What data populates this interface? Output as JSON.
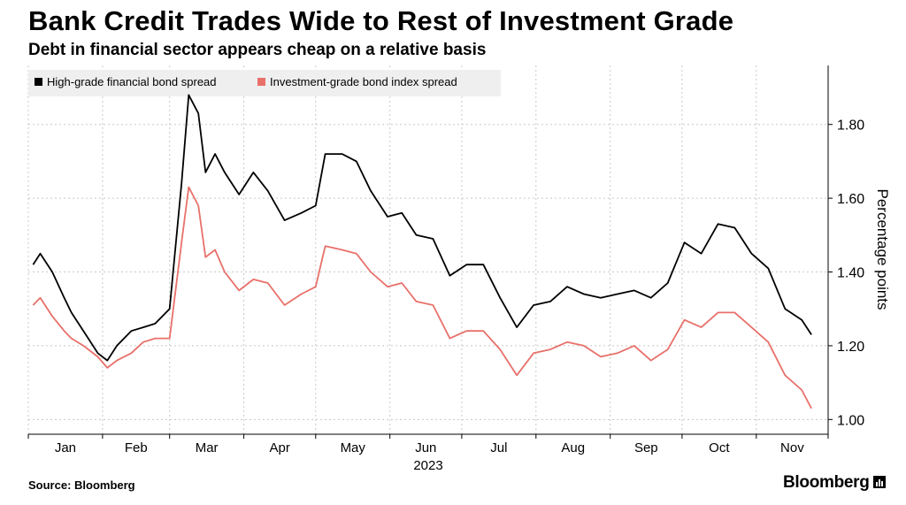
{
  "header": {
    "title": "Bank Credit Trades Wide to Rest of Investment Grade",
    "subtitle": "Debt in financial sector appears cheap on a relative basis"
  },
  "footer": {
    "source": "Source: Bloomberg",
    "brand": "Bloomberg"
  },
  "colors": {
    "financial": "#000000",
    "index": "#e8706a",
    "grid": "#c8c8c8",
    "legend_bg": "#efefef"
  },
  "chart_data": {
    "type": "line",
    "ylabel": "Percentage points",
    "xlabel": "",
    "year_label": "2023",
    "ylim": [
      0.96,
      1.96
    ],
    "yticks": [
      "1.00",
      "1.20",
      "1.40",
      "1.60",
      "1.80"
    ],
    "ytick_values": [
      1.0,
      1.2,
      1.4,
      1.6,
      1.8
    ],
    "month_labels": [
      "Jan",
      "Feb",
      "Mar",
      "Apr",
      "May",
      "Jun",
      "Jul",
      "Aug",
      "Sep",
      "Oct",
      "Nov"
    ],
    "grid": true,
    "legend_position": "top-left",
    "x": [
      "2023-01-03",
      "2023-01-06",
      "2023-01-11",
      "2023-01-16",
      "2023-01-19",
      "2023-01-24",
      "2023-01-30",
      "2023-02-03",
      "2023-02-07",
      "2023-02-13",
      "2023-02-18",
      "2023-02-23",
      "2023-03-01",
      "2023-03-06",
      "2023-03-09",
      "2023-03-13",
      "2023-03-16",
      "2023-03-20",
      "2023-03-24",
      "2023-03-30",
      "2023-04-05",
      "2023-04-11",
      "2023-04-18",
      "2023-04-25",
      "2023-05-01",
      "2023-05-05",
      "2023-05-12",
      "2023-05-18",
      "2023-05-24",
      "2023-05-31",
      "2023-06-06",
      "2023-06-12",
      "2023-06-19",
      "2023-06-26",
      "2023-07-03",
      "2023-07-10",
      "2023-07-17",
      "2023-07-24",
      "2023-07-31",
      "2023-08-07",
      "2023-08-14",
      "2023-08-21",
      "2023-08-28",
      "2023-09-04",
      "2023-09-11",
      "2023-09-18",
      "2023-09-25",
      "2023-10-02",
      "2023-10-09",
      "2023-10-16",
      "2023-10-23",
      "2023-10-30",
      "2023-11-06",
      "2023-11-13",
      "2023-11-20",
      "2023-11-24"
    ],
    "series": [
      {
        "name": "High-grade financial bond spread",
        "color": "#000000",
        "values": [
          1.42,
          1.45,
          1.4,
          1.33,
          1.29,
          1.24,
          1.18,
          1.16,
          1.2,
          1.24,
          1.25,
          1.26,
          1.3,
          1.64,
          1.88,
          1.83,
          1.67,
          1.72,
          1.67,
          1.61,
          1.67,
          1.62,
          1.54,
          1.56,
          1.58,
          1.72,
          1.72,
          1.7,
          1.62,
          1.55,
          1.56,
          1.5,
          1.49,
          1.39,
          1.42,
          1.42,
          1.33,
          1.25,
          1.31,
          1.32,
          1.36,
          1.34,
          1.33,
          1.34,
          1.35,
          1.33,
          1.37,
          1.48,
          1.45,
          1.53,
          1.52,
          1.45,
          1.41,
          1.3,
          1.27,
          1.23
        ]
      },
      {
        "name": "Investment-grade bond index spread",
        "color": "#e8706a",
        "values": [
          1.31,
          1.33,
          1.28,
          1.24,
          1.22,
          1.2,
          1.17,
          1.14,
          1.16,
          1.18,
          1.21,
          1.22,
          1.22,
          1.48,
          1.63,
          1.58,
          1.44,
          1.46,
          1.4,
          1.35,
          1.38,
          1.37,
          1.31,
          1.34,
          1.36,
          1.47,
          1.46,
          1.45,
          1.4,
          1.36,
          1.37,
          1.32,
          1.31,
          1.22,
          1.24,
          1.24,
          1.19,
          1.12,
          1.18,
          1.19,
          1.21,
          1.2,
          1.17,
          1.18,
          1.2,
          1.16,
          1.19,
          1.27,
          1.25,
          1.29,
          1.29,
          1.25,
          1.21,
          1.12,
          1.08,
          1.03
        ]
      }
    ]
  }
}
